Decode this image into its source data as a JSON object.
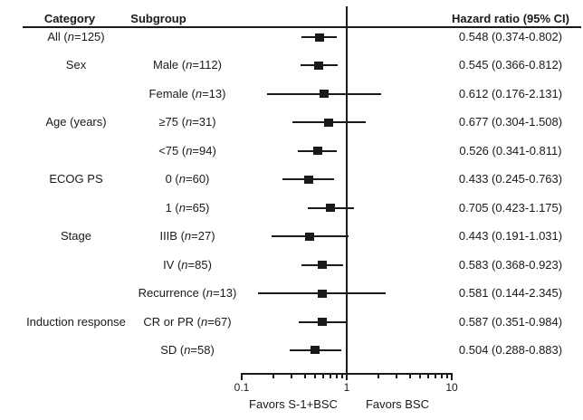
{
  "colors": {
    "ink": "#1a1a1a",
    "background": "#ffffff"
  },
  "chart_data": {
    "type": "forest",
    "x_scale": "log10",
    "xlim": [
      0.1,
      10
    ],
    "reference_line": 1,
    "grid": false,
    "columns": {
      "category": "Category",
      "subgroup": "Subgroup",
      "hazard_ratio": "Hazard ratio (95% CI)"
    },
    "x_major_ticks": [
      0.1,
      1,
      10
    ],
    "x_major_tick_labels": [
      "0.1",
      "1",
      "10"
    ],
    "x_minor_ticks": [
      0.2,
      0.3,
      0.4,
      0.5,
      0.6,
      0.7,
      0.8,
      0.9,
      2,
      3,
      4,
      5,
      6,
      7,
      8,
      9
    ],
    "favors": {
      "left": "Favors S-1+BSC",
      "right": "Favors BSC"
    },
    "rows": [
      {
        "category": "All (n=125)",
        "subgroup": "",
        "hr": 0.548,
        "ci_low": 0.374,
        "ci_high": 0.802,
        "hr_text": "0.548 (0.374-0.802)"
      },
      {
        "category": "Sex",
        "subgroup": "Male (n=112)",
        "hr": 0.545,
        "ci_low": 0.366,
        "ci_high": 0.812,
        "hr_text": "0.545 (0.366-0.812)"
      },
      {
        "category": "",
        "subgroup": "Female (n=13)",
        "hr": 0.612,
        "ci_low": 0.176,
        "ci_high": 2.131,
        "hr_text": "0.612 (0.176-2.131)"
      },
      {
        "category": "Age (years)",
        "subgroup": "≥75 (n=31)",
        "hr": 0.677,
        "ci_low": 0.304,
        "ci_high": 1.508,
        "hr_text": "0.677 (0.304-1.508)"
      },
      {
        "category": "",
        "subgroup": "<75 (n=94)",
        "hr": 0.526,
        "ci_low": 0.341,
        "ci_high": 0.811,
        "hr_text": "0.526 (0.341-0.811)"
      },
      {
        "category": "ECOG PS",
        "subgroup": "0 (n=60)",
        "hr": 0.433,
        "ci_low": 0.245,
        "ci_high": 0.763,
        "hr_text": "0.433 (0.245-0.763)"
      },
      {
        "category": "",
        "subgroup": "1 (n=65)",
        "hr": 0.705,
        "ci_low": 0.423,
        "ci_high": 1.175,
        "hr_text": "0.705 (0.423-1.175)"
      },
      {
        "category": "Stage",
        "subgroup": "IIIB (n=27)",
        "hr": 0.443,
        "ci_low": 0.191,
        "ci_high": 1.031,
        "hr_text": "0.443 (0.191-1.031)"
      },
      {
        "category": "",
        "subgroup": "IV (n=85)",
        "hr": 0.583,
        "ci_low": 0.368,
        "ci_high": 0.923,
        "hr_text": "0.583 (0.368-0.923)"
      },
      {
        "category": "",
        "subgroup": "Recurrence (n=13)",
        "hr": 0.581,
        "ci_low": 0.144,
        "ci_high": 2.345,
        "hr_text": "0.581 (0.144-2.345)"
      },
      {
        "category": "Induction response",
        "subgroup": "CR or PR (n=67)",
        "hr": 0.587,
        "ci_low": 0.351,
        "ci_high": 0.984,
        "hr_text": "0.587 (0.351-0.984)"
      },
      {
        "category": "",
        "subgroup": "SD (n=58)",
        "hr": 0.504,
        "ci_low": 0.288,
        "ci_high": 0.883,
        "hr_text": "0.504 (0.288-0.883)"
      }
    ]
  }
}
